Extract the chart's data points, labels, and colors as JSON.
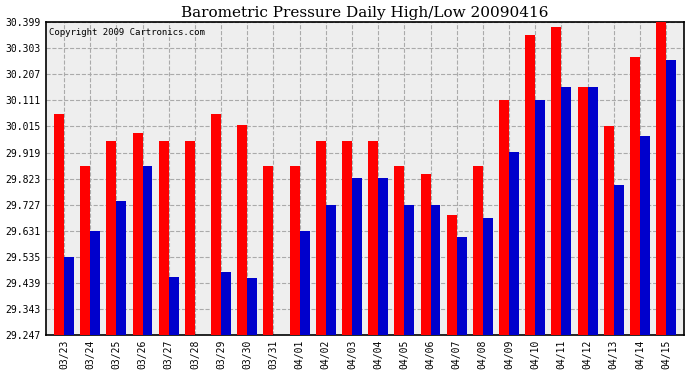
{
  "title": "Barometric Pressure Daily High/Low 20090416",
  "copyright": "Copyright 2009 Cartronics.com",
  "dates": [
    "03/23",
    "03/24",
    "03/25",
    "03/26",
    "03/27",
    "03/28",
    "03/29",
    "03/30",
    "03/31",
    "04/01",
    "04/02",
    "04/03",
    "04/04",
    "04/05",
    "04/06",
    "04/07",
    "04/08",
    "04/09",
    "04/10",
    "04/11",
    "04/12",
    "04/13",
    "04/14",
    "04/15"
  ],
  "highs": [
    30.06,
    29.87,
    29.96,
    29.99,
    29.96,
    29.96,
    30.06,
    30.02,
    29.87,
    29.87,
    29.96,
    29.96,
    29.96,
    29.87,
    29.84,
    29.69,
    29.87,
    30.111,
    30.35,
    30.38,
    30.16,
    30.015,
    30.271,
    30.399
  ],
  "lows": [
    29.535,
    29.63,
    29.74,
    29.87,
    29.46,
    29.247,
    29.48,
    29.459,
    29.247,
    29.63,
    29.727,
    29.827,
    29.827,
    29.727,
    29.727,
    29.61,
    29.68,
    29.92,
    30.111,
    30.16,
    30.16,
    29.8,
    29.98,
    30.26
  ],
  "high_color": "#ff0000",
  "low_color": "#0000cc",
  "bg_color": "#ffffff",
  "plot_bg_color": "#eeeeee",
  "grid_color": "#aaaaaa",
  "ymin": 29.247,
  "ymax": 30.399,
  "yticks": [
    29.247,
    29.343,
    29.439,
    29.535,
    29.631,
    29.727,
    29.823,
    29.919,
    30.015,
    30.111,
    30.207,
    30.303,
    30.399
  ]
}
